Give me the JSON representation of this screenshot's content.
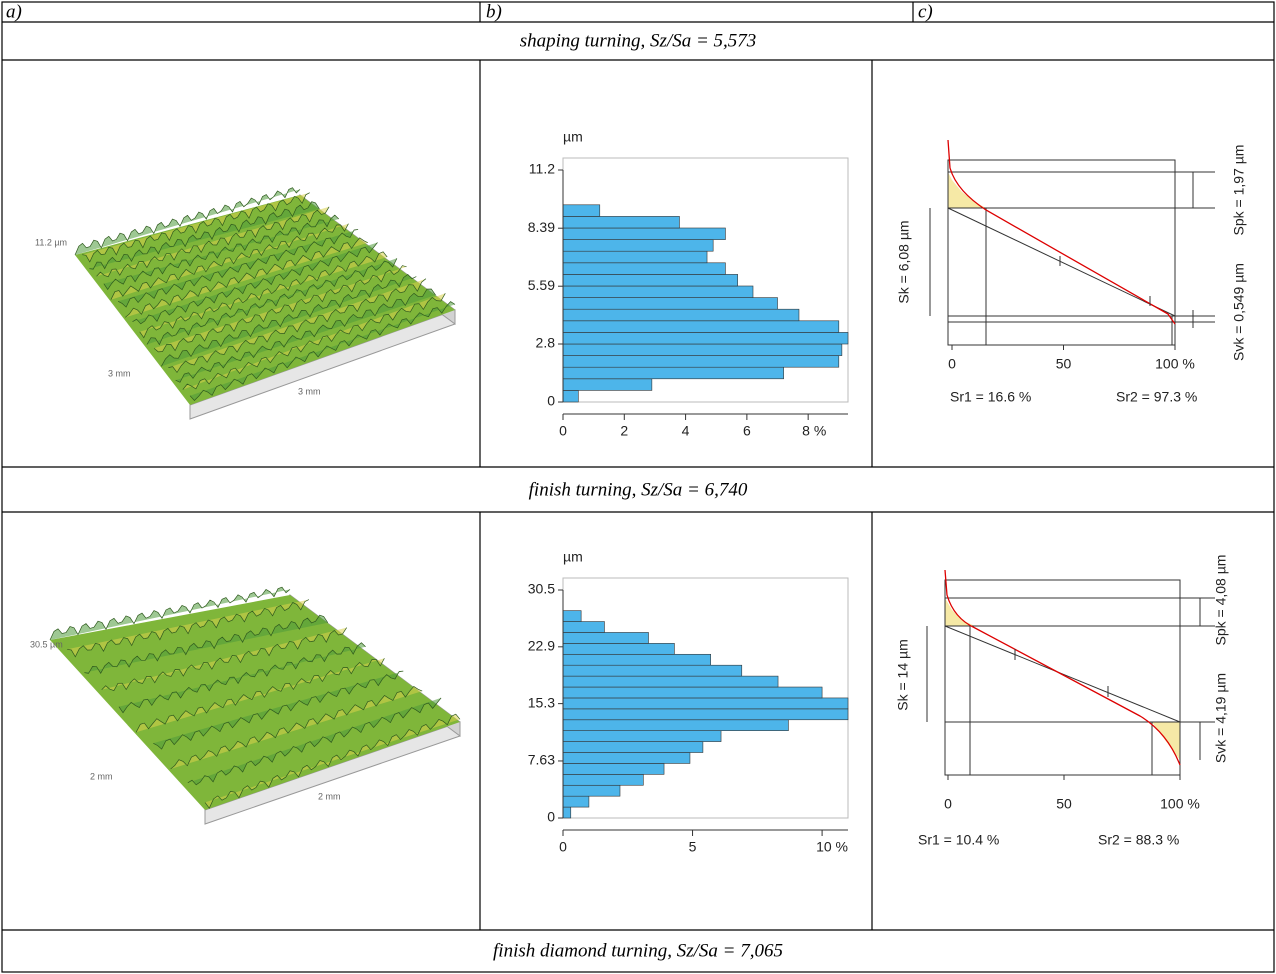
{
  "table": {
    "header": [
      "a)",
      "b)",
      "c)"
    ],
    "sections": [
      {
        "caption": "shaping turning, Sz/Sa = 5,573",
        "surface": {
          "height_label": "11.2 µm",
          "axis_labels": [
            "3 mm",
            "3 mm"
          ]
        },
        "histogram": {
          "type": "histogram",
          "unit": "µm",
          "color": "#4db5ea",
          "bins": [
            0,
            0.56,
            1.12,
            1.68,
            2.24,
            2.8,
            3.36,
            3.92,
            4.48,
            5.04,
            5.6,
            6.16,
            6.72,
            7.28,
            7.84,
            8.4,
            8.96,
            9.52
          ],
          "values": [
            0.5,
            2.9,
            7.2,
            9.0,
            9.1,
            9.3,
            9.0,
            7.7,
            7.0,
            6.2,
            5.7,
            5.3,
            4.7,
            4.9,
            5.3,
            3.8,
            1.2
          ],
          "ylim": [
            0,
            11.2
          ],
          "yticks": [
            0,
            2.8,
            5.59,
            8.39,
            11.2
          ],
          "xlim": [
            0,
            9.3
          ],
          "xticks": [
            0,
            2,
            4,
            6,
            {
              "value": 8,
              "label": "8 %"
            }
          ]
        },
        "material_ratio": {
          "xlim": [
            0,
            100
          ],
          "xticks": [
            0,
            50,
            {
              "value": 100,
              "label": "100 %"
            }
          ],
          "sk": "Sk = 6,08 µm",
          "spk": "Spk = 1,97 µm",
          "svk": "Svk = 0,549 µm",
          "sr1": "Sr1 = 16.6 %",
          "sr2": "Sr2 = 97.3 %"
        }
      },
      {
        "caption": "finish turning, Sz/Sa = 6,740",
        "surface": {
          "height_label": "30.5 µm",
          "axis_labels": [
            "2 mm",
            "2 mm"
          ]
        },
        "histogram": {
          "type": "histogram",
          "unit": "µm",
          "color": "#4db5ea",
          "bins": [
            0,
            1.46,
            2.92,
            4.38,
            5.84,
            7.3,
            8.76,
            10.22,
            11.68,
            13.14,
            14.6,
            16.06,
            17.52,
            18.98,
            20.44,
            21.9,
            23.36,
            24.82,
            26.28,
            27.74
          ],
          "values": [
            0.3,
            1.0,
            2.2,
            3.1,
            3.9,
            4.9,
            5.4,
            6.1,
            8.7,
            11.0,
            11.0,
            10.0,
            8.3,
            6.9,
            5.7,
            4.3,
            3.3,
            1.6,
            0.7
          ],
          "ylim": [
            0,
            30.5
          ],
          "yticks": [
            0,
            7.63,
            15.3,
            22.9,
            30.5
          ],
          "xlim": [
            0,
            11
          ],
          "xticks": [
            0,
            5,
            {
              "value": 10,
              "label": "10 %"
            }
          ]
        },
        "material_ratio": {
          "xlim": [
            0,
            100
          ],
          "xticks": [
            0,
            50,
            {
              "value": 100,
              "label": "100 %"
            }
          ],
          "sk": "Sk = 14 µm",
          "spk": "Spk = 4,08 µm",
          "svk": "Svk = 4,19 µm",
          "sr1": "Sr1 = 10.4 %",
          "sr2": "Sr2 = 88.3 %"
        }
      },
      {
        "caption": "finish diamond turning, Sz/Sa = 7,065"
      }
    ]
  }
}
